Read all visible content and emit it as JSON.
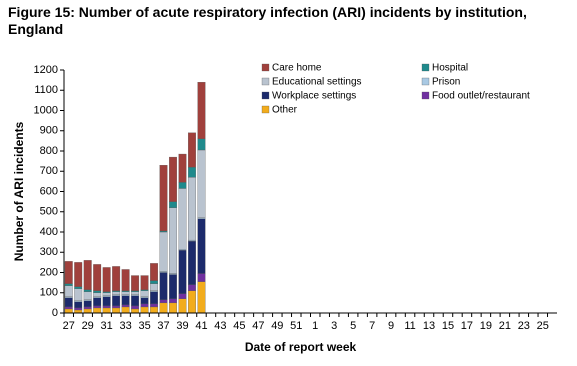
{
  "chart_data": {
    "type": "stacked_bar",
    "title": "Figure 15: Number of acute respiratory infection (ARI) incidents by institution, England",
    "x_label": "Date of report week",
    "y_label": "Number of ARI incidents",
    "categories": [
      "27",
      null,
      "29",
      null,
      "31",
      null,
      "33",
      null,
      "35",
      null,
      "37",
      null,
      "39",
      null,
      "41",
      null,
      "43",
      null,
      "45",
      null,
      "47",
      null,
      "49",
      null,
      "51",
      null,
      "1",
      null,
      "3",
      null,
      "5",
      null,
      "7",
      null,
      "9",
      null,
      "11",
      null,
      "13",
      null,
      "15",
      null,
      "17",
      null,
      "19",
      null,
      "21",
      null,
      "23",
      null,
      "25",
      null
    ],
    "series": [
      {
        "name": "Care home",
        "color": "#a0403c",
        "values": [
          110,
          120,
          145,
          130,
          120,
          120,
          105,
          75,
          70,
          85,
          325,
          220,
          140,
          170,
          280,
          null,
          null,
          null,
          null,
          null,
          null,
          null,
          null,
          null,
          null,
          null,
          null,
          null,
          null,
          null,
          null,
          null,
          null,
          null,
          null,
          null,
          null,
          null,
          null,
          null,
          null,
          null,
          null,
          null,
          null,
          null,
          null,
          null,
          null,
          null,
          null,
          null
        ]
      },
      {
        "name": "Hospital",
        "color": "#1f8a8c",
        "values": [
          10,
          10,
          10,
          10,
          5,
          5,
          5,
          5,
          5,
          15,
          5,
          30,
          30,
          50,
          55,
          null,
          null,
          null,
          null,
          null,
          null,
          null,
          null,
          null,
          null,
          null,
          null,
          null,
          null,
          null,
          null,
          null,
          null,
          null,
          null,
          null,
          null,
          null,
          null,
          null,
          null,
          null,
          null,
          null,
          null,
          null,
          null,
          null,
          null,
          null,
          null,
          null
        ]
      },
      {
        "name": "Educational settings",
        "color": "#b9c3cf",
        "values": [
          55,
          60,
          40,
          20,
          15,
          15,
          15,
          15,
          30,
          35,
          195,
          325,
          300,
          310,
          335,
          null,
          null,
          null,
          null,
          null,
          null,
          null,
          null,
          null,
          null,
          null,
          null,
          null,
          null,
          null,
          null,
          null,
          null,
          null,
          null,
          null,
          null,
          null,
          null,
          null,
          null,
          null,
          null,
          null,
          null,
          null,
          null,
          null,
          null,
          null,
          null,
          null
        ]
      },
      {
        "name": "Prison",
        "color": "#a9c9e3",
        "values": [
          5,
          5,
          5,
          5,
          5,
          5,
          5,
          5,
          5,
          5,
          5,
          5,
          5,
          5,
          5,
          null,
          null,
          null,
          null,
          null,
          null,
          null,
          null,
          null,
          null,
          null,
          null,
          null,
          null,
          null,
          null,
          null,
          null,
          null,
          null,
          null,
          null,
          null,
          null,
          null,
          null,
          null,
          null,
          null,
          null,
          null,
          null,
          null,
          null,
          null,
          null,
          null
        ]
      },
      {
        "name": "Workplace settings",
        "color": "#1c2a6b",
        "values": [
          45,
          30,
          30,
          40,
          45,
          50,
          45,
          50,
          30,
          60,
          135,
          120,
          215,
          215,
          270,
          null,
          null,
          null,
          null,
          null,
          null,
          null,
          null,
          null,
          null,
          null,
          null,
          null,
          null,
          null,
          null,
          null,
          null,
          null,
          null,
          null,
          null,
          null,
          null,
          null,
          null,
          null,
          null,
          null,
          null,
          null,
          null,
          null,
          null,
          null,
          null,
          null
        ]
      },
      {
        "name": "Food outlet/restaurant",
        "color": "#7030a0",
        "values": [
          10,
          10,
          10,
          10,
          10,
          10,
          10,
          15,
          15,
          15,
          15,
          20,
          25,
          30,
          40,
          null,
          null,
          null,
          null,
          null,
          null,
          null,
          null,
          null,
          null,
          null,
          null,
          null,
          null,
          null,
          null,
          null,
          null,
          null,
          null,
          null,
          null,
          null,
          null,
          null,
          null,
          null,
          null,
          null,
          null,
          null,
          null,
          null,
          null,
          null,
          null,
          null
        ]
      },
      {
        "name": "Other",
        "color": "#f2ac1c",
        "values": [
          20,
          15,
          20,
          25,
          25,
          25,
          30,
          20,
          30,
          30,
          50,
          50,
          70,
          110,
          155,
          null,
          null,
          null,
          null,
          null,
          null,
          null,
          null,
          null,
          null,
          null,
          null,
          null,
          null,
          null,
          null,
          null,
          null,
          null,
          null,
          null,
          null,
          null,
          null,
          null,
          null,
          null,
          null,
          null,
          null,
          null,
          null,
          null,
          null,
          null,
          null,
          null
        ]
      }
    ],
    "ylim": [
      0,
      1200
    ],
    "yticks": [
      0,
      100,
      200,
      300,
      400,
      500,
      600,
      700,
      800,
      900,
      1000,
      1100,
      1200
    ],
    "grid": false
  }
}
